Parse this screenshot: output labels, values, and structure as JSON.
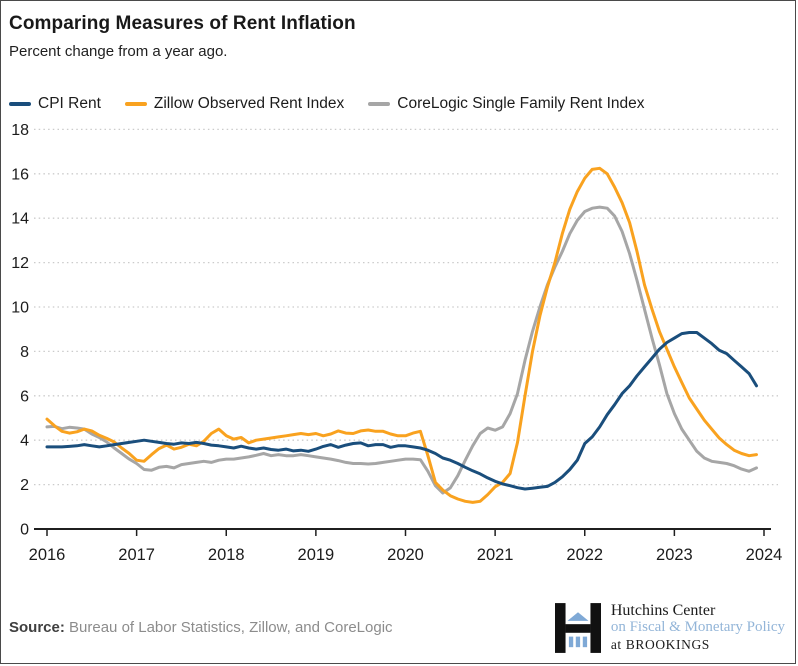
{
  "chart_data": {
    "type": "line",
    "title": "Comparing Measures of Rent Inflation",
    "subtitle": "Percent change from a year ago.",
    "x_unit": "monthly, Jan 2016 through Dec 2023",
    "x_ticks": [
      2016,
      2017,
      2018,
      2019,
      2020,
      2021,
      2022,
      2023,
      2024
    ],
    "y_ticks": [
      0,
      2,
      4,
      6,
      8,
      10,
      12,
      14,
      16,
      18
    ],
    "ylim": [
      0,
      18
    ],
    "grid": "horizontal-dotted",
    "legend_position": "top",
    "series": [
      {
        "id": "cpi-rent",
        "name": "CPI Rent",
        "color": "#1a4e7c",
        "values": [
          3.7,
          3.7,
          3.7,
          3.72,
          3.75,
          3.8,
          3.75,
          3.7,
          3.75,
          3.8,
          3.85,
          3.9,
          3.95,
          4.0,
          3.95,
          3.9,
          3.85,
          3.82,
          3.88,
          3.85,
          3.9,
          3.85,
          3.78,
          3.75,
          3.7,
          3.65,
          3.73,
          3.65,
          3.6,
          3.65,
          3.58,
          3.55,
          3.6,
          3.52,
          3.55,
          3.5,
          3.6,
          3.72,
          3.8,
          3.68,
          3.78,
          3.85,
          3.88,
          3.75,
          3.8,
          3.8,
          3.68,
          3.75,
          3.75,
          3.7,
          3.65,
          3.55,
          3.4,
          3.2,
          3.1,
          2.95,
          2.78,
          2.62,
          2.48,
          2.3,
          2.15,
          2.03,
          1.95,
          1.86,
          1.8,
          1.84,
          1.88,
          1.92,
          2.1,
          2.35,
          2.68,
          3.1,
          3.85,
          4.15,
          4.6,
          5.15,
          5.6,
          6.1,
          6.45,
          6.9,
          7.3,
          7.7,
          8.1,
          8.4,
          8.6,
          8.8,
          8.85,
          8.85,
          8.6,
          8.35,
          8.05,
          7.9,
          7.6,
          7.3,
          7.0,
          6.45
        ]
      },
      {
        "id": "zillow",
        "name": "Zillow Observed Rent Index",
        "color": "#f9a21f",
        "values": [
          4.95,
          4.65,
          4.4,
          4.32,
          4.38,
          4.5,
          4.42,
          4.22,
          4.08,
          3.92,
          3.65,
          3.4,
          3.1,
          3.05,
          3.35,
          3.62,
          3.78,
          3.6,
          3.68,
          3.82,
          3.75,
          3.95,
          4.3,
          4.5,
          4.2,
          4.05,
          4.12,
          3.88,
          4.0,
          4.05,
          4.1,
          4.15,
          4.2,
          4.25,
          4.3,
          4.25,
          4.3,
          4.2,
          4.28,
          4.42,
          4.32,
          4.3,
          4.42,
          4.46,
          4.4,
          4.4,
          4.28,
          4.2,
          4.2,
          4.32,
          4.4,
          3.3,
          2.1,
          1.75,
          1.5,
          1.35,
          1.25,
          1.2,
          1.25,
          1.55,
          1.9,
          2.1,
          2.5,
          3.9,
          6.0,
          8.0,
          9.6,
          10.9,
          12.0,
          13.3,
          14.4,
          15.2,
          15.8,
          16.2,
          16.25,
          16.0,
          15.4,
          14.7,
          13.8,
          12.5,
          11.0,
          9.9,
          8.9,
          8.1,
          7.3,
          6.6,
          5.9,
          5.4,
          4.9,
          4.5,
          4.1,
          3.8,
          3.55,
          3.4,
          3.3,
          3.35
        ]
      },
      {
        "id": "corelogic",
        "name": "CoreLogic Single Family Rent Index",
        "color": "#a6a6a6",
        "values": [
          4.6,
          4.62,
          4.52,
          4.58,
          4.55,
          4.5,
          4.28,
          4.12,
          3.92,
          3.65,
          3.4,
          3.15,
          2.95,
          2.68,
          2.65,
          2.78,
          2.82,
          2.75,
          2.9,
          2.95,
          3.0,
          3.05,
          3.0,
          3.1,
          3.15,
          3.15,
          3.2,
          3.25,
          3.32,
          3.4,
          3.3,
          3.35,
          3.3,
          3.3,
          3.35,
          3.3,
          3.25,
          3.2,
          3.15,
          3.08,
          3.0,
          2.95,
          2.95,
          2.93,
          2.95,
          3.0,
          3.05,
          3.1,
          3.15,
          3.15,
          3.12,
          2.6,
          1.95,
          1.62,
          1.85,
          2.4,
          3.1,
          3.75,
          4.3,
          4.55,
          4.45,
          4.6,
          5.2,
          6.1,
          7.6,
          8.9,
          10.0,
          11.0,
          11.8,
          12.5,
          13.3,
          13.9,
          14.3,
          14.45,
          14.5,
          14.45,
          14.1,
          13.4,
          12.4,
          11.2,
          9.9,
          8.6,
          7.4,
          6.1,
          5.2,
          4.5,
          4.0,
          3.5,
          3.2,
          3.05,
          3.0,
          2.95,
          2.85,
          2.7,
          2.6,
          2.75
        ]
      }
    ]
  },
  "footer": {
    "source_label": "Source:",
    "source_text": "Bureau of Labor Statistics, Zillow, and CoreLogic",
    "logo": {
      "line1": "Hutchins Center",
      "line2": "on Fiscal & Monetary Policy",
      "line3": "at BROOKINGS",
      "accent_blue": "#93b5d8",
      "black": "#111111"
    }
  }
}
